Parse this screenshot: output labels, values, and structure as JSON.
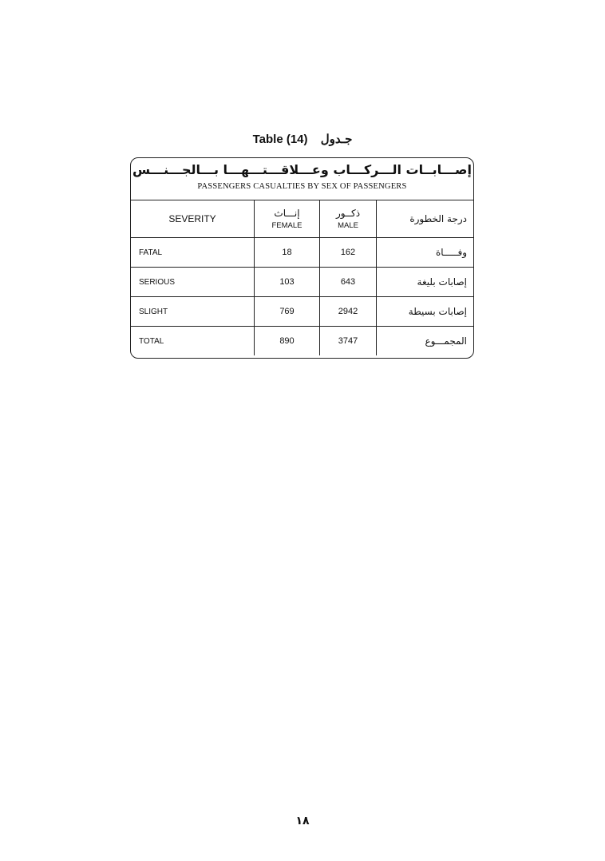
{
  "title": {
    "en": "Table (14)",
    "ar": "جـدول"
  },
  "table": {
    "title_ar": "إصـــابــات الـــركـــاب وعـــلاقـــتـــهـــا بـــالجـــنـــس",
    "title_en": "PASSENGERS CASUALTIES BY SEX OF PASSENGERS",
    "headers": {
      "severity": "SEVERITY",
      "female_ar": "إنـــاث",
      "female_en": "FEMALE",
      "male_ar": "ذكــور",
      "male_en": "MALE",
      "severity_ar": "درجة الخطورة"
    },
    "rows": [
      {
        "severity": "FATAL",
        "female": "18",
        "male": "162",
        "severity_ar": "وفـــــاة"
      },
      {
        "severity": "SERIOUS",
        "female": "103",
        "male": "643",
        "severity_ar": "إصابات بليغة"
      },
      {
        "severity": "SLIGHT",
        "female": "769",
        "male": "2942",
        "severity_ar": "إصابات بسيطة"
      },
      {
        "severity": "TOTAL",
        "female": "890",
        "male": "3747",
        "severity_ar": "المجمـــوع"
      }
    ]
  },
  "page_number": "١٨"
}
